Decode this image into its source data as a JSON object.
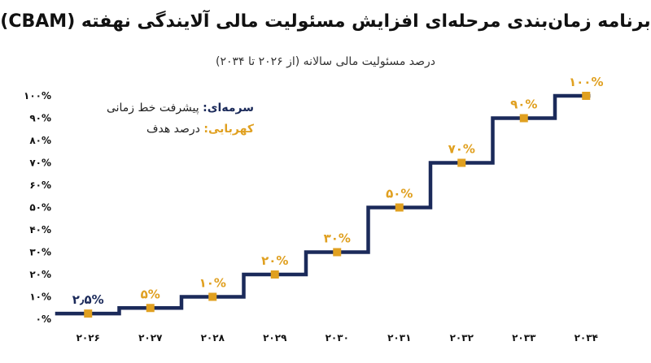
{
  "title": "برنامه زمان‌بندی مرحله‌ای افزایش مسئولیت مالی آلایندگی نهفته (CBAM)",
  "subtitle": "درصد مسئولیت مالی سالانه (از ۲۰۲۶ تا ۲۰۳۴)",
  "legend": {
    "navy_key": "سرمه‌ای:",
    "navy_text": " پیشرفت خط زمانی",
    "amber_key": "کهربایی:",
    "amber_text": " درصد هدف"
  },
  "colors": {
    "line": "#1b2a5a",
    "marker": "#e0a020"
  },
  "chart_data": {
    "type": "line",
    "step": true,
    "grid": false,
    "ylim": [
      0,
      100
    ],
    "y_ticks": [
      "۰%",
      "۱۰%",
      "۲۰%",
      "۳۰%",
      "۴۰%",
      "۵۰%",
      "۶۰%",
      "۷۰%",
      "۸۰%",
      "۹۰%",
      "۱۰۰%"
    ],
    "categories": [
      "۲۰۲۶",
      "۲۰۲۷",
      "۲۰۲۸",
      "۲۰۲۹",
      "۲۰۳۰",
      "۲۰۳۱",
      "۲۰۳۲",
      "۲۰۳۳",
      "۲۰۳۴"
    ],
    "values": [
      2.5,
      5,
      10,
      20,
      30,
      50,
      70,
      90,
      100
    ],
    "data_labels": [
      "۲٫۵%",
      "۵%",
      "۱۰%",
      "۲۰%",
      "۳۰%",
      "۵۰%",
      "۷۰%",
      "۹۰%",
      "۱۰۰%"
    ]
  }
}
